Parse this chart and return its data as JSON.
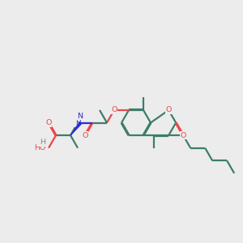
{
  "bg_color": "#ececec",
  "bond_color": "#3d7d6b",
  "oxygen_color": "#e8474a",
  "nitrogen_color": "#2b2bd4",
  "hydrogen_color": "#888888",
  "bond_width": 1.6,
  "dbo": 0.018,
  "figsize": [
    3.0,
    3.0
  ],
  "dpi": 100,
  "xlim": [
    0,
    10
  ],
  "ylim": [
    2,
    8
  ]
}
